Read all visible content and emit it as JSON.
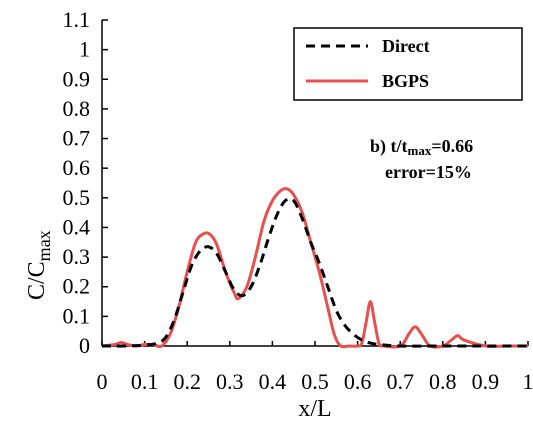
{
  "chart_data": {
    "type": "line",
    "xlabel": "x/L",
    "ylabel_main": "C/C",
    "ylabel_sub": "max",
    "xlim": [
      0,
      1
    ],
    "ylim": [
      0,
      1.1
    ],
    "x_ticks": [
      "0",
      "0.1",
      "0.2",
      "0.3",
      "0.4",
      "0.5",
      "0.6",
      "0.7",
      "0.8",
      "0.9",
      "1"
    ],
    "y_ticks": [
      "0",
      "0.1",
      "0.2",
      "0.3",
      "0.4",
      "0.5",
      "0.6",
      "0.7",
      "0.8",
      "0.9",
      "1",
      "1.1"
    ],
    "legend_position": "top-right",
    "annotation": {
      "line1_prefix": "b) t/t",
      "line1_sub": "max",
      "line1_suffix": "=0.66",
      "line2": "error=15%"
    },
    "series": [
      {
        "name": "Direct",
        "color": "#000000",
        "style": "dashed",
        "x": [
          0,
          0.05,
          0.1,
          0.13,
          0.15,
          0.17,
          0.19,
          0.21,
          0.23,
          0.25,
          0.27,
          0.29,
          0.31,
          0.33,
          0.35,
          0.37,
          0.39,
          0.41,
          0.43,
          0.45,
          0.47,
          0.49,
          0.51,
          0.53,
          0.55,
          0.57,
          0.59,
          0.61,
          0.63,
          0.65,
          0.7,
          0.8,
          0.9,
          1.0
        ],
        "y": [
          0,
          0,
          0.003,
          0.01,
          0.03,
          0.09,
          0.18,
          0.27,
          0.32,
          0.335,
          0.31,
          0.25,
          0.19,
          0.17,
          0.2,
          0.27,
          0.36,
          0.44,
          0.49,
          0.49,
          0.43,
          0.35,
          0.28,
          0.2,
          0.12,
          0.07,
          0.04,
          0.02,
          0.01,
          0.005,
          0,
          0,
          0,
          0
        ]
      },
      {
        "name": "BGPS",
        "color": "#e8504f",
        "style": "solid",
        "x": [
          0,
          0.03,
          0.045,
          0.06,
          0.08,
          0.1,
          0.12,
          0.14,
          0.16,
          0.18,
          0.2,
          0.22,
          0.24,
          0.255,
          0.27,
          0.29,
          0.31,
          0.32,
          0.34,
          0.36,
          0.38,
          0.4,
          0.42,
          0.435,
          0.45,
          0.47,
          0.49,
          0.51,
          0.53,
          0.545,
          0.56,
          0.58,
          0.6,
          0.61,
          0.62,
          0.63,
          0.64,
          0.65,
          0.66,
          0.7,
          0.72,
          0.735,
          0.75,
          0.77,
          0.8,
          0.82,
          0.835,
          0.85,
          0.9,
          0.95,
          1.0
        ],
        "y": [
          0,
          0.005,
          0.012,
          0.005,
          0,
          0.005,
          0.005,
          0,
          0.04,
          0.13,
          0.25,
          0.35,
          0.38,
          0.375,
          0.34,
          0.25,
          0.18,
          0.16,
          0.2,
          0.3,
          0.42,
          0.49,
          0.525,
          0.53,
          0.51,
          0.45,
          0.35,
          0.25,
          0.13,
          0.04,
          0,
          0,
          0,
          0.01,
          0.08,
          0.15,
          0.08,
          0.01,
          0,
          0,
          0.04,
          0.065,
          0.04,
          0,
          0,
          0.02,
          0.035,
          0.02,
          0,
          0,
          0
        ]
      }
    ]
  }
}
